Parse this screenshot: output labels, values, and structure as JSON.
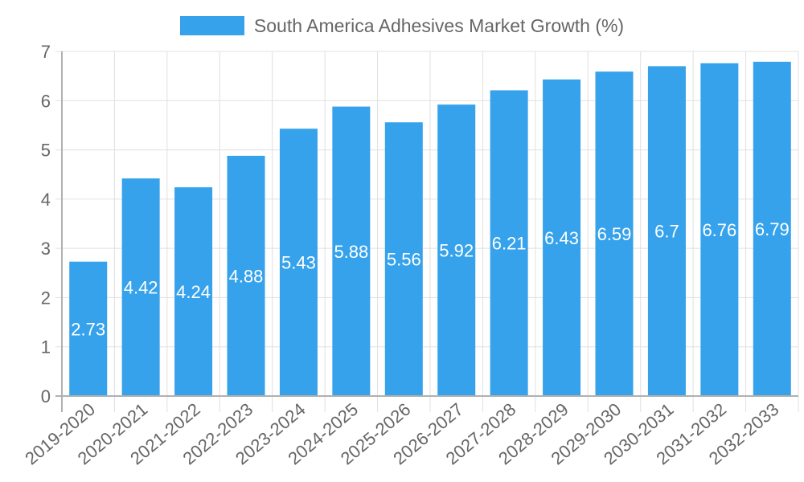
{
  "chart_data": {
    "type": "bar",
    "title": "",
    "categories": [
      "2019-2020",
      "2020-2021",
      "2021-2022",
      "2022-2023",
      "2023-2024",
      "2024-2025",
      "2025-2026",
      "2026-2027",
      "2027-2028",
      "2028-2029",
      "2029-2030",
      "2030-2031",
      "2031-2032",
      "2032-2033"
    ],
    "series": [
      {
        "name": "South America Adhesives Market Growth (%)",
        "values": [
          2.73,
          4.42,
          4.24,
          4.88,
          5.43,
          5.88,
          5.56,
          5.92,
          6.21,
          6.43,
          6.59,
          6.7,
          6.76,
          6.79
        ],
        "color": "#36a2eb"
      }
    ],
    "data_labels": [
      "2.73",
      "4.42",
      "4.24",
      "4.88",
      "5.43",
      "5.88",
      "5.56",
      "5.92",
      "6.21",
      "6.43",
      "6.59",
      "6.7",
      "6.76",
      "6.79"
    ],
    "xlabel": "",
    "ylabel": "",
    "ylim": [
      0,
      7
    ],
    "yticks": [
      "0",
      "1",
      "2",
      "3",
      "4",
      "5",
      "6",
      "7"
    ],
    "grid": true,
    "legend_position": "top"
  },
  "legend": {
    "label": "South America Adhesives Market Growth (%)",
    "color": "#36a2eb"
  }
}
